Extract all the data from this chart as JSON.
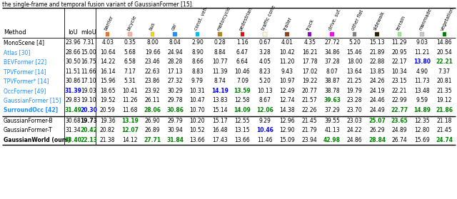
{
  "caption": "the single-frame and temporal fusion variant of GaussianFormer [15].",
  "col_labels": [
    "barrier",
    "bicycle",
    "bus",
    "car",
    "const. veh.",
    "motorcycle",
    "pedestrian",
    "traffic cone",
    "trailer",
    "truck",
    "drive. suf.",
    "other flat",
    "sidewalk",
    "terrain",
    "manmade",
    "vegetation"
  ],
  "swatch_colors": [
    "#E87722",
    "#F4B8A0",
    "#FFD700",
    "#1E90FF",
    "#00BFFF",
    "#B8860B",
    "#FF0000",
    "#FFFACD",
    "#8B4513",
    "#9400D3",
    "#FF00FF",
    "#808080",
    "#2F1B00",
    "#90EE90",
    "#C8C8C8",
    "#008000"
  ],
  "rows": [
    [
      "MonoScene [4]",
      "23.96",
      "7.31",
      "4.03",
      "0.35",
      "8.00",
      "8.04",
      "2.90",
      "0.28",
      "1.16",
      "0.67",
      "4.01",
      "4.35",
      "27.72",
      "5.20",
      "15.13",
      "11.29",
      "9.03",
      "14.86"
    ],
    [
      "Atlas [30]",
      "28.66",
      "15.00",
      "10.64",
      "5.68",
      "19.66",
      "24.94",
      "8.90",
      "8.84",
      "6.47",
      "3.28",
      "10.42",
      "16.21",
      "34.86",
      "15.46",
      "21.89",
      "20.95",
      "11.21",
      "20.54"
    ],
    [
      "BEVFormer [22]",
      "30.50",
      "16.75",
      "14.22",
      "6.58",
      "23.46",
      "28.28",
      "8.66",
      "10.77",
      "6.64",
      "4.05",
      "11.20",
      "17.78",
      "37.28",
      "18.00",
      "22.88",
      "22.17",
      "13.80",
      "22.21"
    ],
    [
      "TPVFormer [14]",
      "11.51",
      "11.66",
      "16.14",
      "7.17",
      "22.63",
      "17.13",
      "8.83",
      "11.39",
      "10.46",
      "8.23",
      "9.43",
      "17.02",
      "8.07",
      "13.64",
      "13.85",
      "10.34",
      "4.90",
      "7.37"
    ],
    [
      "TPVFormer* [14]",
      "30.86",
      "17.10",
      "15.96",
      "5.31",
      "23.86",
      "27.32",
      "9.79",
      "8.74",
      "7.09",
      "5.20",
      "10.97",
      "19.22",
      "38.87",
      "21.25",
      "24.26",
      "23.15",
      "11.73",
      "20.81"
    ],
    [
      "OccFormer [49]",
      "31.39",
      "19.03",
      "18.65",
      "10.41",
      "23.92",
      "30.29",
      "10.31",
      "14.19",
      "13.59",
      "10.13",
      "12.49",
      "20.77",
      "38.78",
      "19.79",
      "24.19",
      "22.21",
      "13.48",
      "21.35"
    ],
    [
      "GaussianFormer [15]",
      "29.83",
      "19.10",
      "19.52",
      "11.26",
      "26.11",
      "29.78",
      "10.47",
      "13.83",
      "12.58",
      "8.67",
      "12.74",
      "21.57",
      "39.63",
      "23.28",
      "24.46",
      "22.99",
      "9.59",
      "19.12"
    ],
    [
      "SurroundOcc [42]",
      "31.49",
      "20.30",
      "20.59",
      "11.68",
      "28.06",
      "30.86",
      "10.70",
      "15.14",
      "14.09",
      "12.06",
      "14.38",
      "22.26",
      "37.29",
      "23.70",
      "24.49",
      "22.77",
      "14.89",
      "21.86"
    ]
  ],
  "rows2": [
    [
      "GaussianFormer-B",
      "30.68",
      "19.73",
      "19.36",
      "13.19",
      "26.90",
      "29.79",
      "10.20",
      "15.17",
      "12.55",
      "9.29",
      "12.96",
      "21.45",
      "39.55",
      "23.03",
      "25.07",
      "23.65",
      "12.35",
      "21.18"
    ],
    [
      "GaussianFormer-T",
      "31.34",
      "20.42",
      "20.82",
      "12.07",
      "26.89",
      "30.94",
      "10.52",
      "16.48",
      "13.15",
      "10.46",
      "12.90",
      "21.79",
      "41.13",
      "24.22",
      "26.29",
      "24.89",
      "12.80",
      "21.45"
    ],
    [
      "GaussianWorld (ours)",
      "33.40",
      "22.13",
      "21.38",
      "14.12",
      "27.71",
      "31.84",
      "13.66",
      "17.43",
      "13.66",
      "11.46",
      "15.09",
      "23.94",
      "42.98",
      "24.86",
      "28.84",
      "26.74",
      "15.69",
      "24.74"
    ]
  ],
  "highlight": {
    "OccFormer [49]_IoU": "blue",
    "OccFormer [49]_motorcycle": "blue",
    "OccFormer [49]_pedestrian": "green",
    "GaussianFormer [15]_drive. suf.": "green",
    "BEVFormer [22]_manmade": "blue",
    "BEVFormer [22]_vegetation": "green",
    "SurroundOcc [42]_IoU": "green",
    "SurroundOcc [42]_mIoU": "blue",
    "SurroundOcc [42]_bus": "green",
    "SurroundOcc [42]_car": "green",
    "SurroundOcc [42]_pedestrian": "green",
    "SurroundOcc [42]_traffic cone": "green",
    "SurroundOcc [42]_terrain": "green",
    "SurroundOcc [42]_manmade": "green",
    "SurroundOcc [42]_vegetation": "green",
    "GaussianFormer-B_mIoU": "black",
    "GaussianFormer-B_bicycle": "green",
    "GaussianFormer-B_sidewalk": "green",
    "GaussianFormer-B_terrain": "green",
    "GaussianFormer-T_mIoU": "green",
    "GaussianFormer-T_bicycle": "green",
    "GaussianFormer-T_traffic cone": "blue",
    "GaussianWorld (ours)_IoU": "green",
    "GaussianWorld (ours)_mIoU": "green",
    "GaussianWorld (ours)_bus": "green",
    "GaussianWorld (ours)_car": "green",
    "GaussianWorld (ours)_drive. suf.": "green",
    "GaussianWorld (ours)_sidewalk": "green",
    "GaussianWorld (ours)_vegetation": "green"
  },
  "method_colors": {
    "MonoScene [4]": "black",
    "Atlas [30]": "#1E90FF",
    "BEVFormer [22]": "#1E90FF",
    "TPVFormer [14]": "#1E90FF",
    "TPVFormer* [14]": "#1E90FF",
    "OccFormer [49]": "#1E90FF",
    "GaussianFormer [15]": "#1E90FF",
    "SurroundOcc [42]": "#1E90FF",
    "GaussianFormer-B": "black",
    "GaussianFormer-T": "black",
    "GaussianWorld (ours)": "black"
  },
  "bold_methods": [
    "SurroundOcc [42]",
    "GaussianWorld (ours)"
  ],
  "bold_iou_methods": [
    "OccFormer [49]",
    "SurroundOcc [42]",
    "GaussianWorld (ours)"
  ]
}
